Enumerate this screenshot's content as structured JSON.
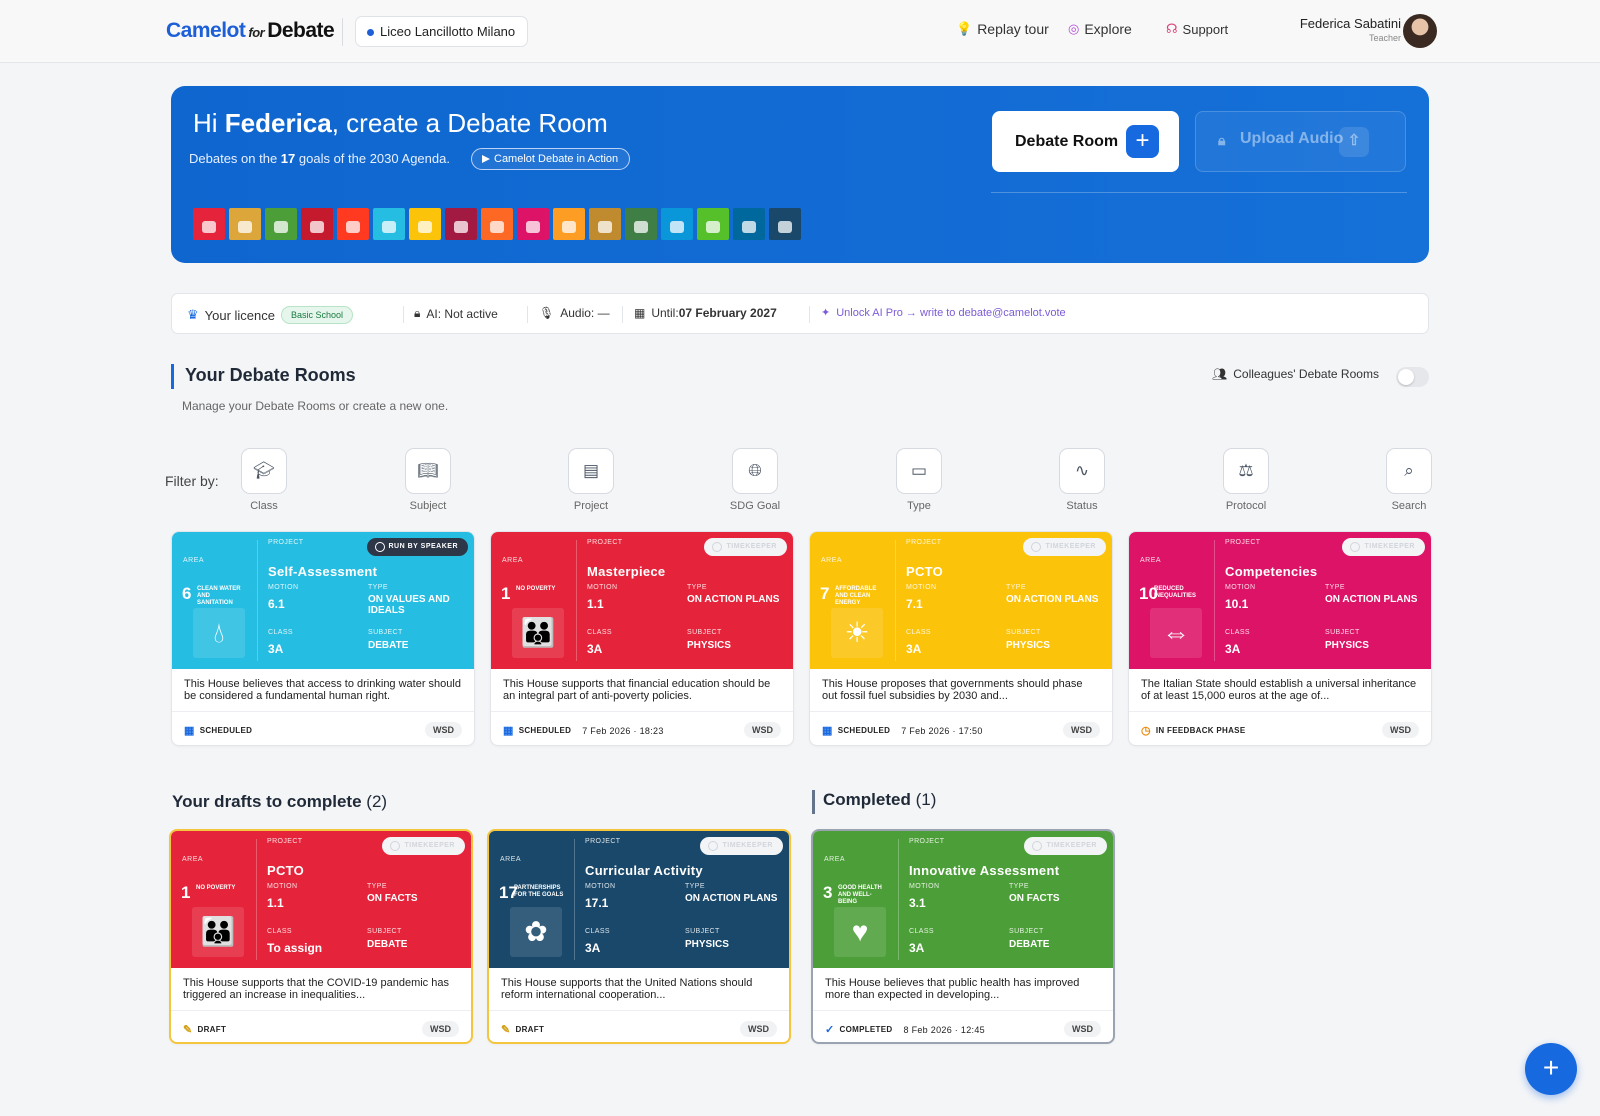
{
  "header": {
    "logo_main": "Camelot",
    "logo_for": "for",
    "logo_debate": "Debate",
    "school": "Liceo Lancillotto Milano",
    "nav": [
      {
        "label": "Replay tour",
        "icon": "bulb-icon"
      },
      {
        "label": "Explore",
        "icon": "compass-icon"
      },
      {
        "label": "Support",
        "icon": "headset-icon"
      }
    ],
    "user_name": "Federica Sabatini",
    "user_role": "Teacher"
  },
  "hero": {
    "greeting_pre": "Hi ",
    "greeting_name": "Federica",
    "greeting_post": ", create a Debate Room",
    "sub_pre": "Debates on the ",
    "sub_num": "17",
    "sub_post": " goals of the 2030 Agenda.",
    "in_action": "Camelot Debate in Action",
    "debate_room_btn": "Debate Room",
    "upload_audio_btn": "Upload Audio",
    "sdg_colors": [
      "#e5243b",
      "#dda63a",
      "#4c9f38",
      "#c5192d",
      "#ff3a21",
      "#26bde2",
      "#fcc30b",
      "#a21942",
      "#fd6925",
      "#dd1367",
      "#fd9d24",
      "#bf8b2e",
      "#3f7e44",
      "#0a97d9",
      "#56c02b",
      "#00689d",
      "#19486a"
    ]
  },
  "licence": {
    "label": "Your licence",
    "plan": "Basic School",
    "ai": "AI: Not active",
    "audio": "Audio: —",
    "until_label": "Until: ",
    "until_date": "07 February 2027",
    "unlock": "Unlock AI Pro → write to debate@camelot.vote"
  },
  "rooms": {
    "title": "Your Debate Rooms",
    "subtitle": "Manage your Debate Rooms or create a new one.",
    "colleagues": "Colleagues' Debate Rooms",
    "filter_label": "Filter by:",
    "filters": [
      {
        "label": "Class",
        "icon": "graduation-cap-icon"
      },
      {
        "label": "Subject",
        "icon": "book-icon"
      },
      {
        "label": "Project",
        "icon": "folder-icon"
      },
      {
        "label": "SDG Goal",
        "icon": "globe-icon"
      },
      {
        "label": "Type",
        "icon": "message-icon"
      },
      {
        "label": "Status",
        "icon": "pulse-icon"
      },
      {
        "label": "Protocol",
        "icon": "scales-icon"
      },
      {
        "label": "Search",
        "icon": "search-icon"
      }
    ]
  },
  "labels": {
    "area": "AREA",
    "project": "PROJECT",
    "motion": "MOTION",
    "type": "TYPE",
    "class": "CLASS",
    "subject": "SUBJECT"
  },
  "cards": [
    {
      "color": "#26bde2",
      "area_num": "6",
      "area_title": "CLEAN WATER AND SANITATION",
      "area_icon": "water-drop-icon",
      "project": "Self-Assessment",
      "badge": "RUN BY SPEAKER",
      "motion": "6.1",
      "type": "ON VALUES AND IDEALS",
      "class": "3A",
      "subject": "DEBATE",
      "text": "This House believes that access to drinking water should be considered a fundamental human right.",
      "status": "SCHEDULED",
      "status_icon": "calendar-icon",
      "date": "",
      "tag": "WSD"
    },
    {
      "color": "#e5243b",
      "area_num": "1",
      "area_title": "NO POVERTY",
      "area_icon": "family-icon",
      "project": "Masterpiece",
      "badge": "TIMEKEEPER",
      "motion": "1.1",
      "type": "ON ACTION PLANS",
      "class": "3A",
      "subject": "PHYSICS",
      "text": "This House supports that financial education should be an integral part of anti-poverty policies.",
      "status": "SCHEDULED",
      "status_icon": "calendar-icon",
      "date": "7 Feb 2026 · 18:23",
      "tag": "WSD"
    },
    {
      "color": "#fcc30b",
      "area_num": "7",
      "area_title": "AFFORDABLE AND CLEAN ENERGY",
      "area_icon": "sun-power-icon",
      "project": "PCTO",
      "badge": "TIMEKEEPER",
      "motion": "7.1",
      "type": "ON ACTION PLANS",
      "class": "3A",
      "subject": "PHYSICS",
      "text": "This House proposes that governments should phase out fossil fuel subsidies by 2030 and...",
      "status": "SCHEDULED",
      "status_icon": "calendar-icon",
      "date": "7 Feb 2026 · 17:50",
      "tag": "WSD"
    },
    {
      "color": "#dd1367",
      "area_num": "10",
      "area_title": "REDUCED INEQUALITIES",
      "area_icon": "equality-arrows-icon",
      "project": "Competencies",
      "badge": "TIMEKEEPER",
      "motion": "10.1",
      "type": "ON ACTION PLANS",
      "class": "3A",
      "subject": "PHYSICS",
      "text": "The Italian State should establish a universal inheritance of at least 15,000 euros at the age of...",
      "status": "IN FEEDBACK PHASE",
      "status_icon": "clock-icon",
      "date": "",
      "tag": "WSD"
    }
  ],
  "drafts": {
    "title": "Your drafts to complete",
    "count": "(2)",
    "cards": [
      {
        "color": "#e5243b",
        "area_num": "1",
        "area_title": "NO POVERTY",
        "area_icon": "family-icon",
        "project": "PCTO",
        "badge": "TIMEKEEPER",
        "motion": "1.1",
        "type": "ON FACTS",
        "class": "To assign",
        "subject": "DEBATE",
        "text": "This House supports that the COVID-19 pandemic has triggered an increase in inequalities...",
        "status": "DRAFT",
        "status_icon": "pencil-icon",
        "date": "",
        "tag": "WSD"
      },
      {
        "color": "#19486a",
        "area_num": "17",
        "area_title": "PARTNERSHIPS FOR THE GOALS",
        "area_icon": "flower-rings-icon",
        "project": "Curricular Activity",
        "badge": "TIMEKEEPER",
        "motion": "17.1",
        "type": "ON ACTION PLANS",
        "class": "3A",
        "subject": "PHYSICS",
        "text": "This House supports that the United Nations should reform international cooperation...",
        "status": "DRAFT",
        "status_icon": "pencil-icon",
        "date": "",
        "tag": "WSD"
      }
    ]
  },
  "completed": {
    "title": "Completed",
    "count": "(1)",
    "cards": [
      {
        "color": "#4c9f38",
        "area_num": "3",
        "area_title": "GOOD HEALTH AND WELL-BEING",
        "area_icon": "heartbeat-icon",
        "project": "Innovative Assessment",
        "badge": "TIMEKEEPER",
        "motion": "3.1",
        "type": "ON FACTS",
        "class": "3A",
        "subject": "DEBATE",
        "text": "This House believes that public health has improved more than expected in developing...",
        "status": "COMPLETED",
        "status_icon": "check-circle-icon",
        "date": "8 Feb 2026 · 12:45",
        "tag": "WSD"
      }
    ]
  }
}
